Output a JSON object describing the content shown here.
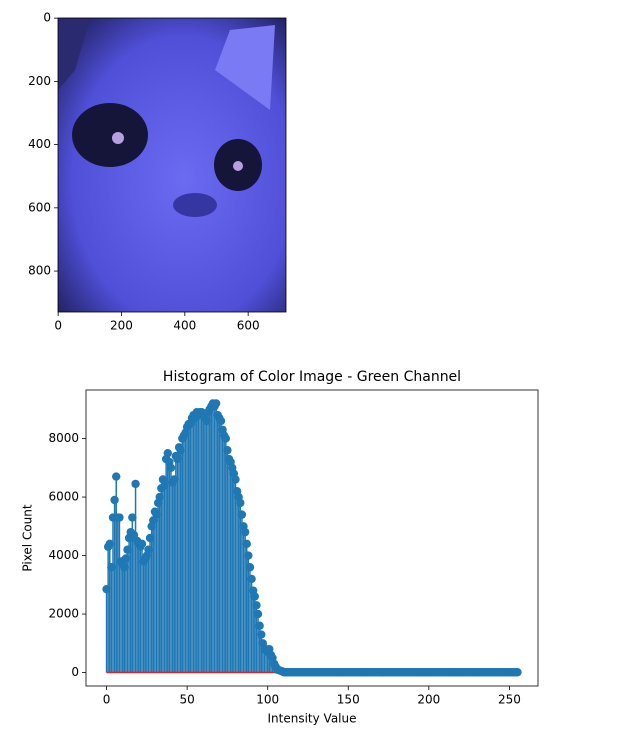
{
  "chart_data": [
    {
      "type": "image",
      "xlim": [
        -0.5,
        719.5
      ],
      "ylim": [
        929.5,
        -0.5
      ],
      "xticks": [
        0,
        200,
        400,
        600
      ],
      "yticks": [
        0,
        200,
        400,
        600,
        800
      ]
    },
    {
      "type": "stem",
      "title": "Histogram of Color Image - Green Channel",
      "xlabel": "Intensity Value",
      "ylabel": "Pixel Count",
      "color": "#1f77b4",
      "baseline_color": "#d62728",
      "xlim": [
        -12.75,
        267.75
      ],
      "ylim": [
        -460,
        9660
      ],
      "xticks": [
        0,
        50,
        100,
        150,
        200,
        250
      ],
      "yticks": [
        0,
        2000,
        4000,
        6000,
        8000
      ],
      "x": [
        0,
        1,
        2,
        3,
        4,
        5,
        6,
        7,
        8,
        9,
        10,
        11,
        12,
        13,
        14,
        15,
        16,
        17,
        18,
        19,
        20,
        21,
        22,
        23,
        24,
        25,
        26,
        27,
        28,
        29,
        30,
        31,
        32,
        33,
        34,
        35,
        36,
        37,
        38,
        39,
        40,
        41,
        42,
        43,
        44,
        45,
        46,
        47,
        48,
        49,
        50,
        51,
        52,
        53,
        54,
        55,
        56,
        57,
        58,
        59,
        60,
        61,
        62,
        63,
        64,
        65,
        66,
        67,
        68,
        69,
        70,
        71,
        72,
        73,
        74,
        75,
        76,
        77,
        78,
        79,
        80,
        81,
        82,
        83,
        84,
        85,
        86,
        87,
        88,
        89,
        90,
        91,
        92,
        93,
        94,
        95,
        96,
        97,
        98,
        99,
        100,
        101,
        102,
        103,
        104,
        105,
        106,
        107,
        108,
        109,
        110,
        111,
        112,
        113,
        114,
        115,
        116,
        117,
        118,
        119,
        120,
        121,
        122,
        123,
        124,
        125,
        126,
        127,
        128,
        129,
        130,
        131,
        132,
        133,
        134,
        135,
        136,
        137,
        138,
        139,
        140,
        141,
        142,
        143,
        144,
        145,
        146,
        147,
        148,
        149,
        150,
        151,
        152,
        153,
        154,
        155,
        156,
        157,
        158,
        159,
        160,
        161,
        162,
        163,
        164,
        165,
        166,
        167,
        168,
        169,
        170,
        171,
        172,
        173,
        174,
        175,
        176,
        177,
        178,
        179,
        180,
        181,
        182,
        183,
        184,
        185,
        186,
        187,
        188,
        189,
        190,
        191,
        192,
        193,
        194,
        195,
        196,
        197,
        198,
        199,
        200,
        201,
        202,
        203,
        204,
        205,
        206,
        207,
        208,
        209,
        210,
        211,
        212,
        213,
        214,
        215,
        216,
        217,
        218,
        219,
        220,
        221,
        222,
        223,
        224,
        225,
        226,
        227,
        228,
        229,
        230,
        231,
        232,
        233,
        234,
        235,
        236,
        237,
        238,
        239,
        240,
        241,
        242,
        243,
        244,
        245,
        246,
        247,
        248,
        249,
        250,
        251,
        252,
        253,
        254,
        255
      ],
      "values": [
        2850,
        4300,
        4400,
        3600,
        5300,
        5900,
        6700,
        5300,
        5300,
        3800,
        3700,
        3600,
        3900,
        4200,
        4600,
        4800,
        5300,
        4700,
        6450,
        4500,
        4400,
        4300,
        4400,
        3800,
        3900,
        4000,
        4200,
        4600,
        5000,
        5200,
        5500,
        5400,
        5800,
        6000,
        6300,
        6600,
        6400,
        7300,
        7500,
        7200,
        7000,
        6500,
        6600,
        7400,
        7300,
        7700,
        7600,
        8000,
        8100,
        8200,
        8400,
        8500,
        8500,
        8700,
        8800,
        8700,
        8900,
        8800,
        8900,
        8900,
        8800,
        8700,
        8600,
        8900,
        9000,
        9100,
        9200,
        9100,
        9200,
        8800,
        8700,
        8600,
        8300,
        8100,
        8000,
        7600,
        7300,
        7200,
        7000,
        6800,
        6600,
        6200,
        6000,
        5800,
        5400,
        5000,
        4800,
        4400,
        4000,
        3600,
        3200,
        2800,
        2600,
        2300,
        2000,
        1600,
        1300,
        1000,
        800,
        800,
        700,
        800,
        600,
        500,
        300,
        200,
        100,
        80,
        60,
        40,
        10,
        10,
        10,
        10,
        10,
        10,
        10,
        10,
        10,
        10,
        10,
        10,
        10,
        10,
        10,
        10,
        10,
        10,
        10,
        10,
        10,
        10,
        10,
        10,
        10,
        10,
        10,
        10,
        10,
        10,
        10,
        10,
        10,
        10,
        10,
        10,
        10,
        10,
        10,
        10,
        10,
        10,
        10,
        10,
        10,
        10,
        10,
        10,
        10,
        10,
        10,
        10,
        10,
        10,
        10,
        10,
        10,
        10,
        10,
        10,
        10,
        10,
        10,
        10,
        10,
        10,
        10,
        10,
        10,
        10,
        10,
        10,
        10,
        10,
        10,
        10,
        10,
        10,
        10,
        10,
        10,
        10,
        10,
        10,
        10,
        10,
        10,
        10,
        10,
        10,
        10,
        10,
        10,
        10,
        10,
        10,
        10,
        10,
        10,
        10,
        10,
        10,
        10,
        10,
        10,
        10,
        10,
        10,
        10,
        10,
        10,
        10,
        10,
        10,
        10,
        10,
        10,
        10,
        10,
        10,
        10,
        10,
        10,
        10,
        10,
        10,
        10,
        10,
        10,
        10,
        10,
        10,
        10,
        10,
        10,
        10,
        10,
        10,
        10,
        10,
        10,
        10,
        10,
        10,
        10,
        10
      ]
    }
  ]
}
